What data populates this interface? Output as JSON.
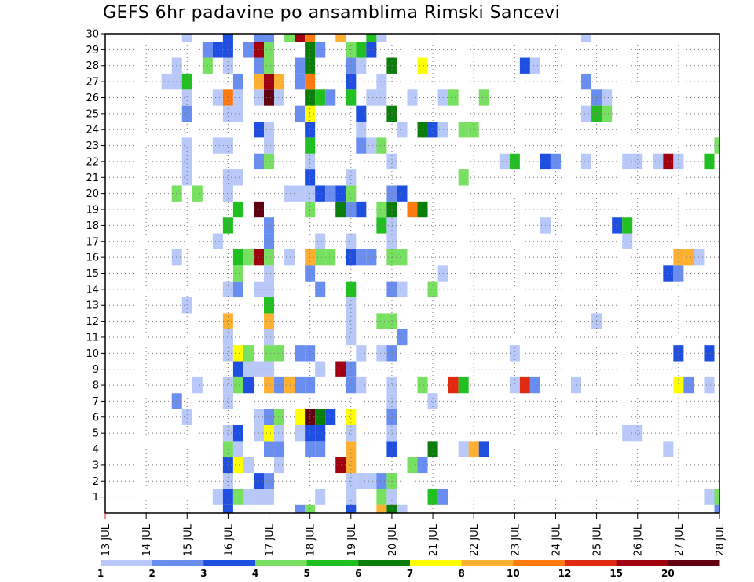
{
  "chart_data": {
    "type": "heatmap",
    "title": "GEFS 6hr padavine po ansamblima Rimski Sancevi",
    "xlabel": "",
    "ylabel": "",
    "x_tick_labels": [
      "13 JUL",
      "14 JUL",
      "15 JUL",
      "16 JUL",
      "17 JUL",
      "18 JUL",
      "19 JUL",
      "20 JUL",
      "21 JUL",
      "22 JUL",
      "23 JUL",
      "24 JUL",
      "25 JUL",
      "26 JUL",
      "27 JUL",
      "28 JUL"
    ],
    "xlim_days": [
      13,
      28
    ],
    "y_tick_labels": [
      "1",
      "2",
      "3",
      "4",
      "5",
      "6",
      "7",
      "8",
      "9",
      "10",
      "11",
      "12",
      "13",
      "14",
      "15",
      "16",
      "17",
      "18",
      "19",
      "20",
      "21",
      "22",
      "23",
      "24",
      "25",
      "26",
      "27",
      "28",
      "29",
      "30"
    ],
    "ylim": [
      0,
      30
    ],
    "grid": true,
    "colorbar": {
      "boundary_labels": [
        "1",
        "2",
        "3",
        "4",
        "5",
        "6",
        "7",
        "8",
        "10",
        "12",
        "15",
        "20"
      ],
      "colors": [
        "#b8c8f8",
        "#6a8ef0",
        "#1f4fe0",
        "#78e060",
        "#20c020",
        "#0a7d0a",
        "#ffff00",
        "#ffb030",
        "#ff7a10",
        "#e02a10",
        "#a00010",
        "#600010"
      ]
    },
    "cells_note": "each entry: [x in days (13..28), member (1..30), color class index 0..11]",
    "cells": [
      [
        15.75,
        1,
        0
      ],
      [
        16.0,
        1,
        2
      ],
      [
        16.25,
        1,
        3
      ],
      [
        16.5,
        1,
        0
      ],
      [
        16.75,
        1,
        0
      ],
      [
        17.0,
        1,
        0
      ],
      [
        18.25,
        1,
        0
      ],
      [
        19.0,
        1,
        0
      ],
      [
        19.75,
        1,
        3
      ],
      [
        20.0,
        1,
        0
      ],
      [
        21.0,
        1,
        4
      ],
      [
        21.25,
        1,
        1
      ],
      [
        27.75,
        1,
        0
      ],
      [
        28.0,
        1,
        3
      ],
      [
        16.0,
        2,
        0
      ],
      [
        16.75,
        2,
        2
      ],
      [
        17.0,
        2,
        1
      ],
      [
        19.0,
        2,
        0
      ],
      [
        19.25,
        2,
        0
      ],
      [
        19.5,
        2,
        0
      ],
      [
        19.75,
        2,
        1
      ],
      [
        20.0,
        2,
        3
      ],
      [
        16.0,
        3,
        2
      ],
      [
        16.25,
        3,
        6
      ],
      [
        16.5,
        3,
        0
      ],
      [
        17.25,
        3,
        0
      ],
      [
        18.75,
        3,
        10
      ],
      [
        19.0,
        3,
        7
      ],
      [
        20.5,
        3,
        3
      ],
      [
        20.75,
        3,
        1
      ],
      [
        16.0,
        4,
        3
      ],
      [
        16.25,
        4,
        0
      ],
      [
        17.0,
        4,
        1
      ],
      [
        17.25,
        4,
        1
      ],
      [
        18.0,
        4,
        1
      ],
      [
        18.25,
        4,
        1
      ],
      [
        19.0,
        4,
        7
      ],
      [
        20.0,
        4,
        2
      ],
      [
        21.0,
        4,
        5
      ],
      [
        21.75,
        4,
        0
      ],
      [
        22.0,
        4,
        7
      ],
      [
        22.25,
        4,
        2
      ],
      [
        26.75,
        4,
        0
      ],
      [
        16.0,
        5,
        0
      ],
      [
        16.25,
        5,
        2
      ],
      [
        16.75,
        5,
        0
      ],
      [
        17.0,
        5,
        6
      ],
      [
        17.25,
        5,
        0
      ],
      [
        17.75,
        5,
        0
      ],
      [
        18.0,
        5,
        2
      ],
      [
        18.25,
        5,
        2
      ],
      [
        19.0,
        5,
        0
      ],
      [
        20.0,
        5,
        0
      ],
      [
        25.75,
        5,
        0
      ],
      [
        26.0,
        5,
        0
      ],
      [
        15.0,
        6,
        0
      ],
      [
        16.75,
        6,
        0
      ],
      [
        17.0,
        6,
        1
      ],
      [
        17.25,
        6,
        3
      ],
      [
        17.75,
        6,
        6
      ],
      [
        18.0,
        6,
        11
      ],
      [
        18.25,
        6,
        5
      ],
      [
        18.5,
        6,
        2
      ],
      [
        19.0,
        6,
        6
      ],
      [
        20.0,
        6,
        1
      ],
      [
        14.75,
        7,
        1
      ],
      [
        16.0,
        7,
        0
      ],
      [
        20.0,
        7,
        0
      ],
      [
        21.0,
        7,
        0
      ],
      [
        15.25,
        8,
        0
      ],
      [
        16.0,
        8,
        0
      ],
      [
        16.25,
        8,
        3
      ],
      [
        16.5,
        8,
        2
      ],
      [
        17.0,
        8,
        7
      ],
      [
        17.25,
        8,
        1
      ],
      [
        17.5,
        8,
        7
      ],
      [
        17.75,
        8,
        1
      ],
      [
        18.0,
        8,
        1
      ],
      [
        19.0,
        8,
        1
      ],
      [
        19.25,
        8,
        0
      ],
      [
        20.0,
        8,
        0
      ],
      [
        20.75,
        8,
        3
      ],
      [
        21.5,
        8,
        9
      ],
      [
        21.75,
        8,
        4
      ],
      [
        23.0,
        8,
        0
      ],
      [
        23.25,
        8,
        9
      ],
      [
        23.5,
        8,
        1
      ],
      [
        24.5,
        8,
        0
      ],
      [
        27.0,
        8,
        6
      ],
      [
        27.25,
        8,
        1
      ],
      [
        27.75,
        8,
        0
      ],
      [
        16.25,
        9,
        2
      ],
      [
        16.5,
        9,
        0
      ],
      [
        16.75,
        9,
        0
      ],
      [
        17.0,
        9,
        0
      ],
      [
        18.25,
        9,
        0
      ],
      [
        18.75,
        9,
        10
      ],
      [
        19.0,
        9,
        1
      ],
      [
        16.0,
        10,
        0
      ],
      [
        16.25,
        10,
        6
      ],
      [
        16.5,
        10,
        3
      ],
      [
        17.0,
        10,
        3
      ],
      [
        17.25,
        10,
        3
      ],
      [
        17.75,
        10,
        1
      ],
      [
        18.0,
        10,
        1
      ],
      [
        19.25,
        10,
        0
      ],
      [
        19.75,
        10,
        0
      ],
      [
        20.0,
        10,
        1
      ],
      [
        23.0,
        10,
        0
      ],
      [
        27.0,
        10,
        2
      ],
      [
        27.75,
        10,
        2
      ],
      [
        16.0,
        11,
        0
      ],
      [
        17.0,
        11,
        0
      ],
      [
        19.0,
        11,
        0
      ],
      [
        20.25,
        11,
        1
      ],
      [
        16.0,
        12,
        7
      ],
      [
        17.0,
        12,
        7
      ],
      [
        19.0,
        12,
        0
      ],
      [
        19.75,
        12,
        3
      ],
      [
        20.0,
        12,
        3
      ],
      [
        25.0,
        12,
        0
      ],
      [
        15.0,
        13,
        0
      ],
      [
        17.0,
        13,
        4
      ],
      [
        19.0,
        13,
        0
      ],
      [
        16.0,
        14,
        0
      ],
      [
        16.25,
        14,
        1
      ],
      [
        16.75,
        14,
        0
      ],
      [
        17.0,
        14,
        0
      ],
      [
        18.25,
        14,
        1
      ],
      [
        19.0,
        14,
        4
      ],
      [
        20.0,
        14,
        1
      ],
      [
        20.25,
        14,
        0
      ],
      [
        21.0,
        14,
        3
      ],
      [
        16.25,
        15,
        3
      ],
      [
        17.0,
        15,
        0
      ],
      [
        18.0,
        15,
        1
      ],
      [
        21.25,
        15,
        0
      ],
      [
        26.75,
        15,
        2
      ],
      [
        27.0,
        15,
        1
      ],
      [
        14.75,
        16,
        0
      ],
      [
        16.25,
        16,
        4
      ],
      [
        16.5,
        16,
        3
      ],
      [
        16.75,
        16,
        10
      ],
      [
        17.0,
        16,
        3
      ],
      [
        17.5,
        16,
        0
      ],
      [
        18.0,
        16,
        7
      ],
      [
        18.25,
        16,
        3
      ],
      [
        18.5,
        16,
        3
      ],
      [
        19.0,
        16,
        2
      ],
      [
        19.25,
        16,
        1
      ],
      [
        19.5,
        16,
        1
      ],
      [
        20.0,
        16,
        3
      ],
      [
        20.25,
        16,
        3
      ],
      [
        27.0,
        16,
        7
      ],
      [
        27.25,
        16,
        7
      ],
      [
        27.5,
        16,
        0
      ],
      [
        15.75,
        17,
        0
      ],
      [
        17.0,
        17,
        1
      ],
      [
        18.25,
        17,
        0
      ],
      [
        19.0,
        17,
        0
      ],
      [
        20.0,
        17,
        0
      ],
      [
        25.75,
        17,
        0
      ],
      [
        16.0,
        18,
        4
      ],
      [
        17.0,
        18,
        1
      ],
      [
        19.75,
        18,
        4
      ],
      [
        20.0,
        18,
        0
      ],
      [
        23.75,
        18,
        0
      ],
      [
        25.5,
        18,
        2
      ],
      [
        25.75,
        18,
        4
      ],
      [
        16.25,
        19,
        4
      ],
      [
        16.75,
        19,
        11
      ],
      [
        18.0,
        19,
        3
      ],
      [
        18.75,
        19,
        5
      ],
      [
        19.0,
        19,
        1
      ],
      [
        19.25,
        19,
        2
      ],
      [
        19.75,
        19,
        3
      ],
      [
        20.0,
        19,
        5
      ],
      [
        20.5,
        19,
        8
      ],
      [
        20.75,
        19,
        5
      ],
      [
        14.75,
        20,
        3
      ],
      [
        15.25,
        20,
        3
      ],
      [
        16.0,
        20,
        0
      ],
      [
        17.5,
        20,
        0
      ],
      [
        17.75,
        20,
        0
      ],
      [
        18.0,
        20,
        0
      ],
      [
        18.25,
        20,
        2
      ],
      [
        18.5,
        20,
        1
      ],
      [
        18.75,
        20,
        2
      ],
      [
        19.0,
        20,
        3
      ],
      [
        20.0,
        20,
        1
      ],
      [
        20.25,
        20,
        2
      ],
      [
        15.0,
        21,
        0
      ],
      [
        16.0,
        21,
        0
      ],
      [
        16.25,
        21,
        0
      ],
      [
        18.0,
        21,
        2
      ],
      [
        19.0,
        21,
        0
      ],
      [
        21.75,
        21,
        3
      ],
      [
        15.0,
        22,
        0
      ],
      [
        16.75,
        22,
        1
      ],
      [
        17.0,
        22,
        3
      ],
      [
        18.0,
        22,
        0
      ],
      [
        20.0,
        22,
        0
      ],
      [
        22.75,
        22,
        0
      ],
      [
        23.0,
        22,
        4
      ],
      [
        23.75,
        22,
        2
      ],
      [
        24.0,
        22,
        1
      ],
      [
        24.75,
        22,
        0
      ],
      [
        25.75,
        22,
        0
      ],
      [
        26.0,
        22,
        0
      ],
      [
        26.5,
        22,
        0
      ],
      [
        26.75,
        22,
        10
      ],
      [
        27.0,
        22,
        0
      ],
      [
        27.75,
        22,
        4
      ],
      [
        15.0,
        23,
        0
      ],
      [
        15.75,
        23,
        0
      ],
      [
        16.0,
        23,
        0
      ],
      [
        17.0,
        23,
        0
      ],
      [
        18.0,
        23,
        4
      ],
      [
        19.25,
        23,
        1
      ],
      [
        19.5,
        23,
        0
      ],
      [
        19.75,
        23,
        3
      ],
      [
        28.0,
        23,
        3
      ],
      [
        16.75,
        24,
        2
      ],
      [
        17.0,
        24,
        0
      ],
      [
        18.0,
        24,
        2
      ],
      [
        19.25,
        24,
        0
      ],
      [
        20.25,
        24,
        0
      ],
      [
        20.75,
        24,
        5
      ],
      [
        21.0,
        24,
        2
      ],
      [
        21.25,
        24,
        0
      ],
      [
        21.75,
        24,
        3
      ],
      [
        22.0,
        24,
        3
      ],
      [
        15.0,
        25,
        1
      ],
      [
        16.0,
        25,
        0
      ],
      [
        16.25,
        25,
        0
      ],
      [
        17.75,
        25,
        1
      ],
      [
        18.0,
        25,
        6
      ],
      [
        19.25,
        25,
        2
      ],
      [
        20.0,
        25,
        5
      ],
      [
        24.75,
        25,
        0
      ],
      [
        25.0,
        25,
        4
      ],
      [
        25.25,
        25,
        3
      ],
      [
        15.0,
        26,
        0
      ],
      [
        15.75,
        26,
        0
      ],
      [
        16.0,
        26,
        8
      ],
      [
        16.25,
        26,
        0
      ],
      [
        16.75,
        26,
        0
      ],
      [
        17.0,
        26,
        11
      ],
      [
        17.25,
        26,
        0
      ],
      [
        18.0,
        26,
        5
      ],
      [
        18.25,
        26,
        4
      ],
      [
        18.5,
        26,
        1
      ],
      [
        19.0,
        26,
        4
      ],
      [
        19.5,
        26,
        0
      ],
      [
        19.75,
        26,
        0
      ],
      [
        20.5,
        26,
        0
      ],
      [
        21.25,
        26,
        0
      ],
      [
        21.5,
        26,
        3
      ],
      [
        22.25,
        26,
        3
      ],
      [
        25.0,
        26,
        1
      ],
      [
        25.25,
        26,
        0
      ],
      [
        14.5,
        27,
        0
      ],
      [
        14.75,
        27,
        0
      ],
      [
        15.0,
        27,
        4
      ],
      [
        16.25,
        27,
        1
      ],
      [
        16.75,
        27,
        7
      ],
      [
        17.0,
        27,
        10
      ],
      [
        17.25,
        27,
        7
      ],
      [
        17.75,
        27,
        1
      ],
      [
        18.0,
        27,
        8
      ],
      [
        19.0,
        27,
        2
      ],
      [
        19.75,
        27,
        0
      ],
      [
        24.75,
        27,
        1
      ],
      [
        14.75,
        28,
        0
      ],
      [
        15.5,
        28,
        3
      ],
      [
        16.0,
        28,
        0
      ],
      [
        16.75,
        28,
        1
      ],
      [
        17.0,
        28,
        3
      ],
      [
        17.75,
        28,
        1
      ],
      [
        18.0,
        28,
        5
      ],
      [
        19.0,
        28,
        1
      ],
      [
        19.25,
        28,
        0
      ],
      [
        20.0,
        28,
        5
      ],
      [
        20.75,
        28,
        6
      ],
      [
        23.25,
        28,
        2
      ],
      [
        23.5,
        28,
        0
      ],
      [
        15.5,
        29,
        1
      ],
      [
        15.75,
        29,
        2
      ],
      [
        16.0,
        29,
        2
      ],
      [
        16.5,
        29,
        1
      ],
      [
        16.75,
        29,
        10
      ],
      [
        17.0,
        29,
        3
      ],
      [
        18.0,
        29,
        5
      ],
      [
        18.25,
        29,
        1
      ],
      [
        19.0,
        29,
        3
      ],
      [
        19.25,
        29,
        4
      ],
      [
        19.5,
        29,
        2
      ],
      [
        15.0,
        30,
        0
      ],
      [
        16.0,
        30,
        2
      ],
      [
        16.75,
        30,
        1
      ],
      [
        17.0,
        30,
        1
      ],
      [
        17.5,
        30,
        3
      ],
      [
        17.75,
        30,
        10
      ],
      [
        18.0,
        30,
        8
      ],
      [
        18.75,
        30,
        7
      ],
      [
        19.5,
        30,
        4
      ],
      [
        19.75,
        30,
        0
      ],
      [
        24.75,
        30,
        0
      ],
      [
        16.0,
        0,
        2
      ],
      [
        17.75,
        0,
        1
      ],
      [
        18.0,
        0,
        3
      ],
      [
        19.0,
        0,
        2
      ],
      [
        19.75,
        0,
        7
      ],
      [
        20.0,
        0,
        5
      ],
      [
        20.25,
        0,
        0
      ],
      [
        28.0,
        0,
        1
      ]
    ]
  }
}
